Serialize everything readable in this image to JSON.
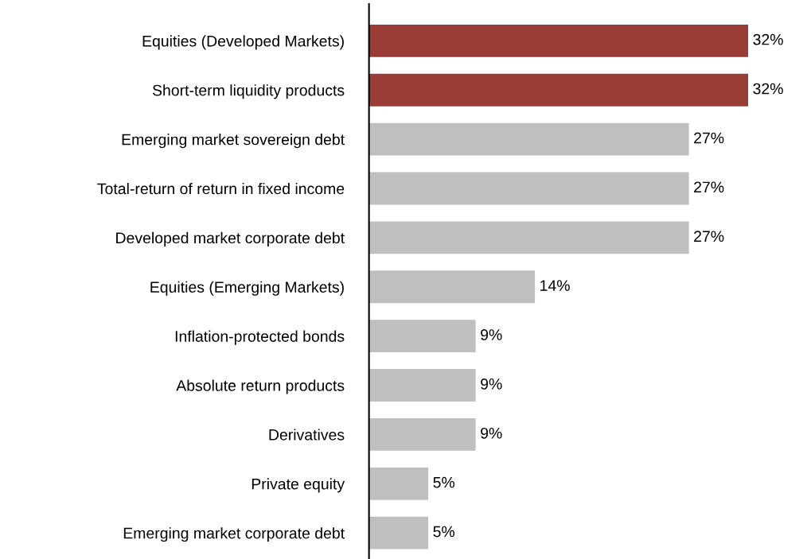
{
  "chart_data": {
    "type": "bar",
    "orientation": "horizontal",
    "categories": [
      "Equities (Developed Markets)",
      "Short-term liquidity products",
      "Emerging market sovereign debt",
      "Total-return of return in fixed income",
      "Developed market corporate debt",
      "Equities (Emerging Markets)",
      "Inflation-protected bonds",
      "Absolute return products",
      "Derivatives",
      "Private equity",
      "Emerging market corporate debt"
    ],
    "values": [
      32,
      32,
      27,
      27,
      27,
      14,
      9,
      9,
      9,
      5,
      5
    ],
    "colors": [
      "#9b3d37",
      "#9b3d37",
      "#bfbfbf",
      "#bfbfbf",
      "#bfbfbf",
      "#bfbfbf",
      "#bfbfbf",
      "#bfbfbf",
      "#bfbfbf",
      "#bfbfbf",
      "#bfbfbf"
    ],
    "value_labels": [
      "32%",
      "32%",
      "27%",
      "27%",
      "27%",
      "14%",
      "9%",
      "9%",
      "9%",
      "5%",
      "5%"
    ],
    "grid": false,
    "legend": false
  }
}
